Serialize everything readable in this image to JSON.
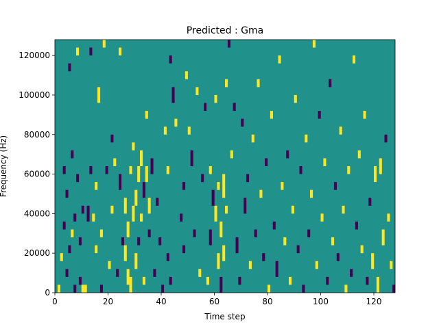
{
  "chart_data": {
    "type": "heatmap",
    "title": "Predicted : Gma",
    "xlabel": "Time step",
    "ylabel": "Frequency (Hz)",
    "xlim": [
      0,
      128
    ],
    "ylim": [
      0,
      128000
    ],
    "xticks": [
      0,
      20,
      40,
      60,
      80,
      100,
      120
    ],
    "yticks": [
      0,
      20000,
      40000,
      60000,
      80000,
      100000,
      120000
    ],
    "xtick_labels": [
      "0",
      "20",
      "40",
      "60",
      "80",
      "100",
      "120"
    ],
    "ytick_labels": [
      "0",
      "20000",
      "40000",
      "60000",
      "80000",
      "100000",
      "120000"
    ],
    "grid": false,
    "legend": "none",
    "colors": {
      "background": "#21918c",
      "high": "#fde725",
      "low": "#440154"
    },
    "cells": [
      {
        "x": 1,
        "y0": 0,
        "y1": 4000,
        "v": 1
      },
      {
        "x": 2,
        "y0": 16000,
        "y1": 20000,
        "v": 1
      },
      {
        "x": 3,
        "y0": 60000,
        "y1": 64000,
        "v": -1
      },
      {
        "x": 3,
        "y0": 32000,
        "y1": 36000,
        "v": -1
      },
      {
        "x": 4,
        "y0": 8000,
        "y1": 12000,
        "v": -1
      },
      {
        "x": 4,
        "y0": 48000,
        "y1": 52000,
        "v": -1
      },
      {
        "x": 5,
        "y0": 112000,
        "y1": 116000,
        "v": -1
      },
      {
        "x": 5,
        "y0": 20000,
        "y1": 24000,
        "v": -1
      },
      {
        "x": 6,
        "y0": 68000,
        "y1": 72000,
        "v": -1
      },
      {
        "x": 6,
        "y0": 28000,
        "y1": 32000,
        "v": 1
      },
      {
        "x": 7,
        "y0": 0,
        "y1": 4000,
        "v": -1
      },
      {
        "x": 7,
        "y0": 36000,
        "y1": 40000,
        "v": -1
      },
      {
        "x": 8,
        "y0": 120000,
        "y1": 124000,
        "v": 1
      },
      {
        "x": 8,
        "y0": 56000,
        "y1": 60000,
        "v": -1
      },
      {
        "x": 9,
        "y0": 24000,
        "y1": 28000,
        "v": -1
      },
      {
        "x": 9,
        "y0": 4000,
        "y1": 8000,
        "v": -1
      },
      {
        "x": 10,
        "y0": 40000,
        "y1": 44000,
        "v": -1
      },
      {
        "x": 10,
        "y0": 0,
        "y1": 4000,
        "v": 1
      },
      {
        "x": 11,
        "y0": 0,
        "y1": 4000,
        "v": 1
      },
      {
        "x": 12,
        "y0": 36000,
        "y1": 44000,
        "v": -1
      },
      {
        "x": 13,
        "y0": 120000,
        "y1": 124000,
        "v": -1
      },
      {
        "x": 13,
        "y0": 60000,
        "y1": 64000,
        "v": -1
      },
      {
        "x": 14,
        "y0": 36000,
        "y1": 40000,
        "v": 1
      },
      {
        "x": 15,
        "y0": 20000,
        "y1": 24000,
        "v": 1
      },
      {
        "x": 15,
        "y0": 52000,
        "y1": 56000,
        "v": 1
      },
      {
        "x": 16,
        "y0": 96000,
        "y1": 104000,
        "v": 1
      },
      {
        "x": 17,
        "y0": 28000,
        "y1": 32000,
        "v": 1
      },
      {
        "x": 17,
        "y0": 0,
        "y1": 4000,
        "v": -1
      },
      {
        "x": 18,
        "y0": 124000,
        "y1": 128000,
        "v": 1
      },
      {
        "x": 19,
        "y0": 60000,
        "y1": 64000,
        "v": -1
      },
      {
        "x": 20,
        "y0": 12000,
        "y1": 16000,
        "v": 1
      },
      {
        "x": 21,
        "y0": 76000,
        "y1": 80000,
        "v": -1
      },
      {
        "x": 21,
        "y0": 40000,
        "y1": 44000,
        "v": 1
      },
      {
        "x": 22,
        "y0": 64000,
        "y1": 68000,
        "v": 1
      },
      {
        "x": 23,
        "y0": 8000,
        "y1": 12000,
        "v": -1
      },
      {
        "x": 24,
        "y0": 120000,
        "y1": 124000,
        "v": 1
      },
      {
        "x": 24,
        "y0": 52000,
        "y1": 60000,
        "v": -1
      },
      {
        "x": 25,
        "y0": 24000,
        "y1": 28000,
        "v": -1
      },
      {
        "x": 26,
        "y0": 16000,
        "y1": 24000,
        "v": 1
      },
      {
        "x": 26,
        "y0": 40000,
        "y1": 48000,
        "v": 1
      },
      {
        "x": 27,
        "y0": 4000,
        "y1": 12000,
        "v": 1
      },
      {
        "x": 27,
        "y0": 28000,
        "y1": 36000,
        "v": 1
      },
      {
        "x": 28,
        "y0": 0,
        "y1": 8000,
        "v": 1
      },
      {
        "x": 28,
        "y0": 60000,
        "y1": 64000,
        "v": 1
      },
      {
        "x": 29,
        "y0": 36000,
        "y1": 44000,
        "v": 1
      },
      {
        "x": 29,
        "y0": 72000,
        "y1": 76000,
        "v": 1
      },
      {
        "x": 30,
        "y0": 44000,
        "y1": 52000,
        "v": 1
      },
      {
        "x": 30,
        "y0": 12000,
        "y1": 20000,
        "v": 1
      },
      {
        "x": 31,
        "y0": 56000,
        "y1": 64000,
        "v": 1
      },
      {
        "x": 31,
        "y0": 24000,
        "y1": 28000,
        "v": -1
      },
      {
        "x": 32,
        "y0": 64000,
        "y1": 72000,
        "v": 1
      },
      {
        "x": 32,
        "y0": 36000,
        "y1": 40000,
        "v": 1
      },
      {
        "x": 33,
        "y0": 48000,
        "y1": 56000,
        "v": -1
      },
      {
        "x": 33,
        "y0": 4000,
        "y1": 8000,
        "v": 1
      },
      {
        "x": 34,
        "y0": 56000,
        "y1": 64000,
        "v": 1
      },
      {
        "x": 34,
        "y0": 88000,
        "y1": 92000,
        "v": 1
      },
      {
        "x": 35,
        "y0": 28000,
        "y1": 32000,
        "v": -1
      },
      {
        "x": 35,
        "y0": 40000,
        "y1": 48000,
        "v": 1
      },
      {
        "x": 36,
        "y0": 60000,
        "y1": 68000,
        "v": -1
      },
      {
        "x": 37,
        "y0": 8000,
        "y1": 12000,
        "v": -1
      },
      {
        "x": 38,
        "y0": 44000,
        "y1": 48000,
        "v": -1
      },
      {
        "x": 39,
        "y0": 24000,
        "y1": 28000,
        "v": -1
      },
      {
        "x": 40,
        "y0": 0,
        "y1": 4000,
        "v": -1
      },
      {
        "x": 41,
        "y0": 80000,
        "y1": 84000,
        "v": 1
      },
      {
        "x": 42,
        "y0": 16000,
        "y1": 20000,
        "v": -1
      },
      {
        "x": 42,
        "y0": 60000,
        "y1": 64000,
        "v": 1
      },
      {
        "x": 43,
        "y0": 116000,
        "y1": 120000,
        "v": -1
      },
      {
        "x": 43,
        "y0": 4000,
        "y1": 8000,
        "v": -1
      },
      {
        "x": 44,
        "y0": 96000,
        "y1": 104000,
        "v": -1
      },
      {
        "x": 45,
        "y0": 84000,
        "y1": 88000,
        "v": 1
      },
      {
        "x": 47,
        "y0": 36000,
        "y1": 40000,
        "v": -1
      },
      {
        "x": 48,
        "y0": 52000,
        "y1": 56000,
        "v": -1
      },
      {
        "x": 48,
        "y0": 20000,
        "y1": 24000,
        "v": -1
      },
      {
        "x": 49,
        "y0": 108000,
        "y1": 112000,
        "v": 1
      },
      {
        "x": 50,
        "y0": 80000,
        "y1": 84000,
        "v": 1
      },
      {
        "x": 51,
        "y0": 64000,
        "y1": 72000,
        "v": -1
      },
      {
        "x": 52,
        "y0": 28000,
        "y1": 32000,
        "v": -1
      },
      {
        "x": 53,
        "y0": 100000,
        "y1": 104000,
        "v": 1
      },
      {
        "x": 54,
        "y0": 8000,
        "y1": 12000,
        "v": 1
      },
      {
        "x": 55,
        "y0": 56000,
        "y1": 60000,
        "v": -1
      },
      {
        "x": 56,
        "y0": 92000,
        "y1": 96000,
        "v": -1
      },
      {
        "x": 57,
        "y0": 4000,
        "y1": 8000,
        "v": 1
      },
      {
        "x": 58,
        "y0": 60000,
        "y1": 64000,
        "v": 1
      },
      {
        "x": 58,
        "y0": 24000,
        "y1": 32000,
        "v": -1
      },
      {
        "x": 59,
        "y0": 44000,
        "y1": 52000,
        "v": -1
      },
      {
        "x": 60,
        "y0": 36000,
        "y1": 44000,
        "v": 1
      },
      {
        "x": 60,
        "y0": 96000,
        "y1": 100000,
        "v": 1
      },
      {
        "x": 61,
        "y0": 12000,
        "y1": 20000,
        "v": 1
      },
      {
        "x": 61,
        "y0": 52000,
        "y1": 56000,
        "v": 1
      },
      {
        "x": 62,
        "y0": 0,
        "y1": 8000,
        "v": -1
      },
      {
        "x": 62,
        "y0": 28000,
        "y1": 36000,
        "v": 1
      },
      {
        "x": 63,
        "y0": 48000,
        "y1": 60000,
        "v": 1
      },
      {
        "x": 63,
        "y0": 16000,
        "y1": 24000,
        "v": 1
      },
      {
        "x": 64,
        "y0": 104000,
        "y1": 108000,
        "v": 1
      },
      {
        "x": 64,
        "y0": 40000,
        "y1": 44000,
        "v": 1
      },
      {
        "x": 65,
        "y0": 124000,
        "y1": 128000,
        "v": -1
      },
      {
        "x": 66,
        "y0": 68000,
        "y1": 72000,
        "v": 1
      },
      {
        "x": 67,
        "y0": 92000,
        "y1": 96000,
        "v": -1
      },
      {
        "x": 68,
        "y0": 20000,
        "y1": 28000,
        "v": -1
      },
      {
        "x": 69,
        "y0": 4000,
        "y1": 8000,
        "v": -1
      },
      {
        "x": 70,
        "y0": 84000,
        "y1": 88000,
        "v": -1
      },
      {
        "x": 71,
        "y0": 40000,
        "y1": 48000,
        "v": -1
      },
      {
        "x": 72,
        "y0": 56000,
        "y1": 60000,
        "v": -1
      },
      {
        "x": 73,
        "y0": 12000,
        "y1": 16000,
        "v": 1
      },
      {
        "x": 74,
        "y0": 76000,
        "y1": 80000,
        "v": 1
      },
      {
        "x": 75,
        "y0": 28000,
        "y1": 32000,
        "v": -1
      },
      {
        "x": 76,
        "y0": 104000,
        "y1": 108000,
        "v": 1
      },
      {
        "x": 77,
        "y0": 48000,
        "y1": 52000,
        "v": 1
      },
      {
        "x": 78,
        "y0": 16000,
        "y1": 20000,
        "v": -1
      },
      {
        "x": 79,
        "y0": 64000,
        "y1": 68000,
        "v": -1
      },
      {
        "x": 80,
        "y0": 0,
        "y1": 4000,
        "v": 1
      },
      {
        "x": 81,
        "y0": 88000,
        "y1": 92000,
        "v": 1
      },
      {
        "x": 82,
        "y0": 32000,
        "y1": 36000,
        "v": -1
      },
      {
        "x": 83,
        "y0": 8000,
        "y1": 16000,
        "v": -1
      },
      {
        "x": 84,
        "y0": 116000,
        "y1": 120000,
        "v": 1
      },
      {
        "x": 85,
        "y0": 52000,
        "y1": 56000,
        "v": 1
      },
      {
        "x": 86,
        "y0": 24000,
        "y1": 28000,
        "v": 1
      },
      {
        "x": 87,
        "y0": 68000,
        "y1": 72000,
        "v": -1
      },
      {
        "x": 88,
        "y0": 4000,
        "y1": 8000,
        "v": 1
      },
      {
        "x": 89,
        "y0": 40000,
        "y1": 44000,
        "v": 1
      },
      {
        "x": 90,
        "y0": 96000,
        "y1": 100000,
        "v": 1
      },
      {
        "x": 91,
        "y0": 20000,
        "y1": 24000,
        "v": -1
      },
      {
        "x": 92,
        "y0": 60000,
        "y1": 64000,
        "v": -1
      },
      {
        "x": 93,
        "y0": 0,
        "y1": 4000,
        "v": -1
      },
      {
        "x": 94,
        "y0": 76000,
        "y1": 80000,
        "v": 1
      },
      {
        "x": 95,
        "y0": 28000,
        "y1": 32000,
        "v": -1
      },
      {
        "x": 96,
        "y0": 48000,
        "y1": 52000,
        "v": 1
      },
      {
        "x": 97,
        "y0": 124000,
        "y1": 128000,
        "v": 1
      },
      {
        "x": 98,
        "y0": 12000,
        "y1": 16000,
        "v": 1
      },
      {
        "x": 99,
        "y0": 88000,
        "y1": 92000,
        "v": -1
      },
      {
        "x": 100,
        "y0": 36000,
        "y1": 40000,
        "v": 1
      },
      {
        "x": 101,
        "y0": 64000,
        "y1": 68000,
        "v": 1
      },
      {
        "x": 102,
        "y0": 4000,
        "y1": 8000,
        "v": -1
      },
      {
        "x": 103,
        "y0": 104000,
        "y1": 108000,
        "v": -1
      },
      {
        "x": 104,
        "y0": 24000,
        "y1": 28000,
        "v": 1
      },
      {
        "x": 105,
        "y0": 52000,
        "y1": 56000,
        "v": -1
      },
      {
        "x": 106,
        "y0": 16000,
        "y1": 20000,
        "v": -1
      },
      {
        "x": 107,
        "y0": 80000,
        "y1": 84000,
        "v": 1
      },
      {
        "x": 108,
        "y0": 40000,
        "y1": 44000,
        "v": 1
      },
      {
        "x": 109,
        "y0": 0,
        "y1": 4000,
        "v": 1
      },
      {
        "x": 110,
        "y0": 60000,
        "y1": 64000,
        "v": 1
      },
      {
        "x": 111,
        "y0": 8000,
        "y1": 12000,
        "v": -1
      },
      {
        "x": 112,
        "y0": 116000,
        "y1": 120000,
        "v": 1
      },
      {
        "x": 113,
        "y0": 32000,
        "y1": 36000,
        "v": -1
      },
      {
        "x": 114,
        "y0": 68000,
        "y1": 72000,
        "v": 1
      },
      {
        "x": 115,
        "y0": 20000,
        "y1": 24000,
        "v": 1
      },
      {
        "x": 116,
        "y0": 88000,
        "y1": 92000,
        "v": 1
      },
      {
        "x": 117,
        "y0": 4000,
        "y1": 8000,
        "v": -1
      },
      {
        "x": 118,
        "y0": 44000,
        "y1": 48000,
        "v": -1
      },
      {
        "x": 119,
        "y0": 12000,
        "y1": 20000,
        "v": 1
      },
      {
        "x": 120,
        "y0": 56000,
        "y1": 64000,
        "v": 1
      },
      {
        "x": 121,
        "y0": 0,
        "y1": 8000,
        "v": 1
      },
      {
        "x": 122,
        "y0": 60000,
        "y1": 68000,
        "v": 1
      },
      {
        "x": 123,
        "y0": 24000,
        "y1": 32000,
        "v": 1
      },
      {
        "x": 124,
        "y0": 76000,
        "y1": 80000,
        "v": -1
      },
      {
        "x": 125,
        "y0": 36000,
        "y1": 40000,
        "v": 1
      },
      {
        "x": 126,
        "y0": 12000,
        "y1": 16000,
        "v": 1
      },
      {
        "x": 127,
        "y0": 0,
        "y1": 4000,
        "v": -1
      }
    ]
  }
}
